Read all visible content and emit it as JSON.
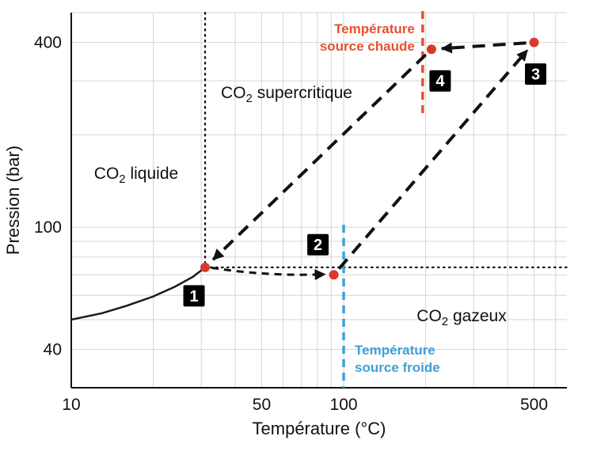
{
  "chart_data": {
    "type": "scatter",
    "subtype": "log-log phase diagram with thermodynamic cycle",
    "title": "",
    "xlabel": "Température (°C)",
    "ylabel": "Pression (bar)",
    "x_scale": "log",
    "y_scale": "log",
    "x_range": [
      10,
      660
    ],
    "y_range": [
      30,
      500
    ],
    "x_ticks": [
      {
        "value": 10,
        "label": "10"
      },
      {
        "value": 50,
        "label": "50"
      },
      {
        "value": 100,
        "label": "100"
      },
      {
        "value": 500,
        "label": "500"
      }
    ],
    "y_ticks": [
      {
        "value": 40,
        "label": "40"
      },
      {
        "value": 100,
        "label": "100"
      },
      {
        "value": 400,
        "label": "400"
      }
    ],
    "grid": {
      "show": true,
      "color": "#d6d6d6",
      "x_lines": [
        20,
        30,
        40,
        50,
        60,
        70,
        80,
        90,
        100,
        200,
        300,
        400,
        500,
        600
      ],
      "y_lines": [
        40,
        50,
        60,
        70,
        80,
        90,
        100,
        200,
        300,
        400,
        500
      ]
    },
    "saturation_curve": {
      "comment": "liquid-vapor coexistence line ending at CO2 critical point",
      "color": "#1a1a1a",
      "points": [
        [
          10,
          50
        ],
        [
          13,
          52.5
        ],
        [
          16,
          55.5
        ],
        [
          20,
          59.5
        ],
        [
          24,
          64
        ],
        [
          28,
          69
        ],
        [
          31,
          74
        ]
      ]
    },
    "critical_point_guides": {
      "temperature_c": 31,
      "pressure_bar": 74,
      "style": "dotted",
      "color": "#111111"
    },
    "point_color": "#d93a2b",
    "cycle_points": [
      {
        "id": "1",
        "label": "1",
        "temperature_c": 31,
        "pressure_bar": 74
      },
      {
        "id": "2",
        "label": "2",
        "temperature_c": 92,
        "pressure_bar": 70
      },
      {
        "id": "3",
        "label": "3",
        "temperature_c": 500,
        "pressure_bar": 400
      },
      {
        "id": "4",
        "label": "4",
        "temperature_c": 210,
        "pressure_bar": 380
      }
    ],
    "cycle_arrows": [
      {
        "from": "1",
        "to": "2"
      },
      {
        "from": "2",
        "to": "3"
      },
      {
        "from": "3",
        "to": "4"
      },
      {
        "from": "4",
        "to": "1"
      }
    ],
    "source_lines": [
      {
        "id": "hot",
        "label_lines": [
          "Température",
          "source chaude"
        ],
        "temperature_c": 195,
        "color": "#e8502e"
      },
      {
        "id": "cold",
        "label_lines": [
          "Température",
          "source froide"
        ],
        "temperature_c": 100,
        "color": "#3f9fd8"
      }
    ],
    "regions": [
      {
        "id": "liquide",
        "pre": "CO",
        "sub": "2",
        "post": " liquide"
      },
      {
        "id": "supercritique",
        "pre": "CO",
        "sub": "2",
        "post": " supercritique"
      },
      {
        "id": "gazeux",
        "pre": "CO",
        "sub": "2",
        "post": " gazeux"
      }
    ]
  }
}
